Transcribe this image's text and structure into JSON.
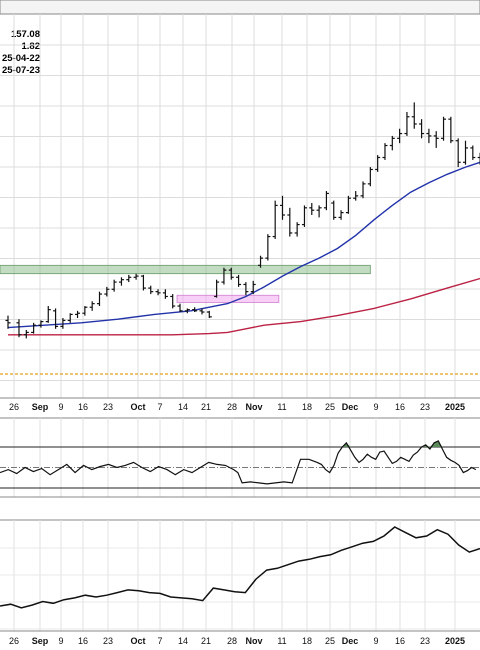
{
  "header": {
    "lines": [
      "157.08",
      "1.82",
      "25-04-22",
      "25-07-23"
    ]
  },
  "chart_data": [
    {
      "type": "ohlc",
      "panel": "price",
      "x_tick_labels": [
        "26",
        "Sep",
        "9",
        "16",
        "23",
        "Oct",
        "7",
        "14",
        "21",
        "28",
        "Nov",
        "11",
        "18",
        "25",
        "Dec",
        "9",
        "16",
        "23",
        "2025"
      ],
      "x_tick_bold": [
        "Sep",
        "Oct",
        "Nov",
        "Dec",
        "2025"
      ],
      "grid": true,
      "bars": [
        {
          "d": 0,
          "o": 108,
          "h": 110,
          "l": 104.5,
          "c": 107
        },
        {
          "d": 3,
          "o": 107,
          "h": 108.5,
          "l": 101,
          "c": 102
        },
        {
          "d": 5,
          "o": 102,
          "h": 104,
          "l": 100.5,
          "c": 103
        },
        {
          "d": 7,
          "o": 103,
          "h": 107,
          "l": 102.5,
          "c": 106
        },
        {
          "d": 9,
          "o": 106,
          "h": 108,
          "l": 105,
          "c": 107.5
        },
        {
          "d": 11,
          "o": 107.5,
          "h": 114,
          "l": 107,
          "c": 112.5
        },
        {
          "d": 13,
          "o": 112,
          "h": 113,
          "l": 104.5,
          "c": 105.5
        },
        {
          "d": 15,
          "o": 105.5,
          "h": 109,
          "l": 104.5,
          "c": 108
        },
        {
          "d": 17,
          "o": 108,
          "h": 111,
          "l": 107,
          "c": 110.5
        },
        {
          "d": 19,
          "o": 110.5,
          "h": 112,
          "l": 109,
          "c": 111
        },
        {
          "d": 21,
          "o": 111,
          "h": 114,
          "l": 110,
          "c": 113.5
        },
        {
          "d": 23,
          "o": 113.5,
          "h": 116,
          "l": 112,
          "c": 115
        },
        {
          "d": 25,
          "o": 115,
          "h": 120,
          "l": 114,
          "c": 119
        },
        {
          "d": 27,
          "o": 119,
          "h": 122,
          "l": 118,
          "c": 121
        },
        {
          "d": 29,
          "o": 121,
          "h": 125,
          "l": 120,
          "c": 124
        },
        {
          "d": 31,
          "o": 124,
          "h": 126,
          "l": 122.5,
          "c": 125
        },
        {
          "d": 33,
          "o": 125,
          "h": 127,
          "l": 124,
          "c": 126
        },
        {
          "d": 35,
          "o": 126,
          "h": 127.5,
          "l": 125,
          "c": 126.5
        },
        {
          "d": 37,
          "o": 126.5,
          "h": 127,
          "l": 120.5,
          "c": 121.5
        },
        {
          "d": 39,
          "o": 121.5,
          "h": 122.5,
          "l": 119,
          "c": 120
        },
        {
          "d": 41,
          "o": 120,
          "h": 121,
          "l": 118.5,
          "c": 119.5
        },
        {
          "d": 43,
          "o": 119.5,
          "h": 121,
          "l": 117,
          "c": 118
        },
        {
          "d": 45,
          "o": 118,
          "h": 119,
          "l": 113,
          "c": 114
        },
        {
          "d": 47,
          "o": 114,
          "h": 115,
          "l": 111.5,
          "c": 112
        },
        {
          "d": 49,
          "o": 112,
          "h": 113,
          "l": 111,
          "c": 112.5
        },
        {
          "d": 51,
          "o": 112.5,
          "h": 113.5,
          "l": 111.5,
          "c": 112
        },
        {
          "d": 53,
          "o": 112,
          "h": 113,
          "l": 110.5,
          "c": 111.5
        },
        {
          "d": 55,
          "o": 111.5,
          "h": 112,
          "l": 109,
          "c": 109.5
        },
        {
          "d": 57,
          "o": 118,
          "h": 125,
          "l": 117.5,
          "c": 124
        },
        {
          "d": 59,
          "o": 124,
          "h": 130,
          "l": 123,
          "c": 129
        },
        {
          "d": 61,
          "o": 129,
          "h": 130,
          "l": 125,
          "c": 126
        },
        {
          "d": 63,
          "o": 126,
          "h": 127,
          "l": 122,
          "c": 123
        },
        {
          "d": 65,
          "o": 123,
          "h": 124,
          "l": 118.5,
          "c": 120
        },
        {
          "d": 67,
          "o": 120,
          "h": 124.5,
          "l": 119,
          "c": 123
        },
        {
          "d": 69,
          "o": 131,
          "h": 135,
          "l": 130,
          "c": 134
        },
        {
          "d": 71,
          "o": 134,
          "h": 144,
          "l": 133,
          "c": 143
        },
        {
          "d": 73,
          "o": 143,
          "h": 158,
          "l": 142,
          "c": 156
        },
        {
          "d": 75,
          "o": 156,
          "h": 160,
          "l": 150,
          "c": 152
        },
        {
          "d": 77,
          "o": 152,
          "h": 155,
          "l": 143,
          "c": 144.5
        },
        {
          "d": 79,
          "o": 144.5,
          "h": 149,
          "l": 143,
          "c": 148
        },
        {
          "d": 81,
          "o": 148,
          "h": 156,
          "l": 147,
          "c": 155
        },
        {
          "d": 83,
          "o": 155,
          "h": 157,
          "l": 152,
          "c": 154
        },
        {
          "d": 85,
          "o": 154,
          "h": 156,
          "l": 151,
          "c": 155
        },
        {
          "d": 87,
          "o": 155,
          "h": 162,
          "l": 154,
          "c": 161
        },
        {
          "d": 89,
          "o": 157,
          "h": 158,
          "l": 150,
          "c": 151
        },
        {
          "d": 91,
          "o": 151,
          "h": 154,
          "l": 150,
          "c": 153
        },
        {
          "d": 93,
          "o": 153,
          "h": 160,
          "l": 152.5,
          "c": 159
        },
        {
          "d": 95,
          "o": 159,
          "h": 162,
          "l": 158,
          "c": 160
        },
        {
          "d": 97,
          "o": 160,
          "h": 166,
          "l": 159,
          "c": 165
        },
        {
          "d": 99,
          "o": 165,
          "h": 172,
          "l": 164,
          "c": 171
        },
        {
          "d": 101,
          "o": 171,
          "h": 177,
          "l": 170,
          "c": 176
        },
        {
          "d": 103,
          "o": 176,
          "h": 182,
          "l": 175,
          "c": 181
        },
        {
          "d": 105,
          "o": 181,
          "h": 185,
          "l": 179,
          "c": 184
        },
        {
          "d": 107,
          "o": 184,
          "h": 188,
          "l": 182,
          "c": 186
        },
        {
          "d": 109,
          "o": 186,
          "h": 195,
          "l": 185,
          "c": 193
        },
        {
          "d": 111,
          "o": 193,
          "h": 199,
          "l": 188,
          "c": 190
        },
        {
          "d": 113,
          "o": 190,
          "h": 192,
          "l": 184,
          "c": 186
        },
        {
          "d": 115,
          "o": 186,
          "h": 188,
          "l": 182,
          "c": 185
        },
        {
          "d": 117,
          "o": 185,
          "h": 187,
          "l": 180,
          "c": 184
        },
        {
          "d": 119,
          "o": 184,
          "h": 193,
          "l": 183,
          "c": 192
        },
        {
          "d": 121,
          "o": 192,
          "h": 193,
          "l": 182,
          "c": 183
        },
        {
          "d": 123,
          "o": 183,
          "h": 184,
          "l": 172,
          "c": 174
        },
        {
          "d": 125,
          "o": 174,
          "h": 183,
          "l": 173,
          "c": 180
        },
        {
          "d": 127,
          "o": 180,
          "h": 181,
          "l": 175,
          "c": 176
        },
        {
          "d": 129,
          "o": 176,
          "h": 178,
          "l": 173,
          "c": 175
        }
      ],
      "sma_short": [
        [
          0,
          105
        ],
        [
          10,
          106
        ],
        [
          20,
          107
        ],
        [
          30,
          108.5
        ],
        [
          40,
          110.5
        ],
        [
          50,
          112
        ],
        [
          55,
          113.5
        ],
        [
          60,
          115
        ],
        [
          65,
          118
        ],
        [
          70,
          122
        ],
        [
          75,
          126.5
        ],
        [
          80,
          130.5
        ],
        [
          85,
          134
        ],
        [
          90,
          138
        ],
        [
          95,
          143.5
        ],
        [
          100,
          150
        ],
        [
          105,
          156
        ],
        [
          110,
          161.5
        ],
        [
          115,
          165.5
        ],
        [
          120,
          169
        ],
        [
          125,
          172
        ],
        [
          129,
          174
        ]
      ],
      "sma_long": [
        [
          0,
          102
        ],
        [
          30,
          102
        ],
        [
          45,
          102
        ],
        [
          55,
          102.5
        ],
        [
          60,
          103
        ],
        [
          65,
          104.5
        ],
        [
          70,
          106
        ],
        [
          80,
          107.5
        ],
        [
          90,
          110
        ],
        [
          100,
          113
        ],
        [
          110,
          117
        ],
        [
          120,
          121.5
        ],
        [
          129,
          125.5
        ]
      ],
      "green_zone": {
        "from": 0,
        "to": 99,
        "low": 127.5,
        "high": 131
      },
      "pink_zone": {
        "from": 47,
        "to": 74,
        "low": 115.5,
        "high": 118.5
      },
      "dashed_level": 92,
      "colors": {
        "bars": "#111111",
        "sma_short": "#2233aa",
        "sma_long": "#bb2244",
        "green_zone": "#8fbf8f",
        "pink_zone": "#f0a8f0",
        "dashed": "#e0a020"
      }
    },
    {
      "type": "line",
      "panel": "oscillator",
      "upper_level": 70,
      "lower_level": 30,
      "mid_level": 50,
      "y": [
        [
          0,
          45
        ],
        [
          4,
          48
        ],
        [
          8,
          44
        ],
        [
          12,
          50
        ],
        [
          16,
          46
        ],
        [
          20,
          49
        ],
        [
          24,
          43
        ],
        [
          28,
          48
        ],
        [
          32,
          53
        ],
        [
          36,
          45
        ],
        [
          40,
          52
        ],
        [
          44,
          48
        ],
        [
          48,
          51
        ],
        [
          52,
          53
        ],
        [
          56,
          50
        ],
        [
          60,
          52
        ],
        [
          64,
          55
        ],
        [
          68,
          50
        ],
        [
          72,
          46
        ],
        [
          76,
          51
        ],
        [
          80,
          48
        ],
        [
          84,
          43
        ],
        [
          88,
          48
        ],
        [
          92,
          45
        ],
        [
          96,
          50
        ],
        [
          100,
          55
        ],
        [
          104,
          53
        ],
        [
          108,
          52
        ],
        [
          112,
          48
        ],
        [
          114,
          45
        ],
        [
          116,
          35
        ],
        [
          120,
          36
        ],
        [
          124,
          35
        ],
        [
          128,
          34
        ],
        [
          132,
          35
        ],
        [
          136,
          36
        ],
        [
          140,
          35
        ],
        [
          144,
          58
        ],
        [
          148,
          58
        ],
        [
          152,
          55
        ],
        [
          154,
          53
        ],
        [
          156,
          48
        ],
        [
          158,
          45
        ],
        [
          160,
          52
        ],
        [
          162,
          64
        ],
        [
          164,
          70
        ],
        [
          166,
          74
        ],
        [
          168,
          67
        ],
        [
          170,
          60
        ],
        [
          172,
          55
        ],
        [
          174,
          58
        ],
        [
          176,
          63
        ],
        [
          178,
          60
        ],
        [
          180,
          58
        ],
        [
          182,
          65
        ],
        [
          184,
          66
        ],
        [
          186,
          60
        ],
        [
          188,
          54
        ],
        [
          190,
          56
        ],
        [
          192,
          60
        ],
        [
          194,
          58
        ],
        [
          196,
          56
        ],
        [
          198,
          62
        ],
        [
          200,
          65
        ],
        [
          202,
          70
        ],
        [
          204,
          72
        ],
        [
          206,
          68
        ],
        [
          208,
          74
        ],
        [
          210,
          76
        ],
        [
          212,
          68
        ],
        [
          214,
          60
        ],
        [
          216,
          57
        ],
        [
          218,
          55
        ],
        [
          220,
          52
        ],
        [
          222,
          45
        ],
        [
          224,
          47
        ],
        [
          226,
          50
        ],
        [
          228,
          48
        ]
      ],
      "colors": {
        "line": "#111111",
        "fill": "#5a8a5a"
      }
    },
    {
      "type": "line",
      "panel": "indicator",
      "y": [
        [
          0,
          10
        ],
        [
          3,
          12
        ],
        [
          6,
          8
        ],
        [
          9,
          11
        ],
        [
          12,
          15
        ],
        [
          15,
          13
        ],
        [
          18,
          17
        ],
        [
          21,
          19
        ],
        [
          24,
          22
        ],
        [
          27,
          20
        ],
        [
          30,
          22
        ],
        [
          33,
          25
        ],
        [
          36,
          28
        ],
        [
          39,
          27
        ],
        [
          42,
          25
        ],
        [
          45,
          24
        ],
        [
          48,
          20
        ],
        [
          51,
          19
        ],
        [
          54,
          18
        ],
        [
          57,
          16
        ],
        [
          60,
          30
        ],
        [
          63,
          28
        ],
        [
          66,
          26
        ],
        [
          69,
          25
        ],
        [
          72,
          40
        ],
        [
          75,
          50
        ],
        [
          78,
          52
        ],
        [
          81,
          56
        ],
        [
          84,
          60
        ],
        [
          87,
          62
        ],
        [
          90,
          65
        ],
        [
          93,
          67
        ],
        [
          96,
          72
        ],
        [
          99,
          76
        ],
        [
          102,
          80
        ],
        [
          105,
          82
        ],
        [
          108,
          88
        ],
        [
          111,
          98
        ],
        [
          114,
          92
        ],
        [
          117,
          86
        ],
        [
          120,
          88
        ],
        [
          123,
          95
        ],
        [
          126,
          90
        ],
        [
          129,
          78
        ],
        [
          132,
          70
        ],
        [
          135,
          74
        ]
      ],
      "colors": {
        "line": "#111111"
      }
    }
  ]
}
